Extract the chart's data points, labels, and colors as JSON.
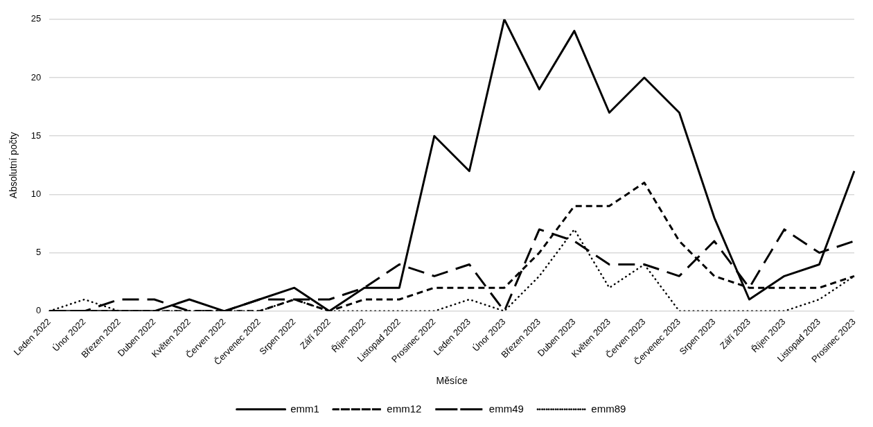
{
  "chart_data": {
    "type": "line",
    "xlabel": "Měsíce",
    "ylabel": "Absolutní počty",
    "categories": [
      "Leden 2022",
      "Únor 2022",
      "Březen 2022",
      "Duben 2022",
      "Květen 2022",
      "Červen 2022",
      "Červenec 2022",
      "Srpen 2022",
      "Září 2022",
      "Říjen 2022",
      "Listopad 2022",
      "Prosinec 2022",
      "Leden 2023",
      "Únor 2023",
      "Březen 2023",
      "Duben 2023",
      "Květen 2023",
      "Červen 2023",
      "Červenec 2023",
      "Srpen 2023",
      "Září 2023",
      "Říjen 2023",
      "Listopad 2023",
      "Prosinec 2023"
    ],
    "series": [
      {
        "name": "emm1",
        "color": "#000000",
        "line_style": "solid",
        "values": [
          0,
          0,
          0,
          0,
          1,
          0,
          1,
          2,
          0,
          2,
          2,
          15,
          12,
          25,
          19,
          24,
          17,
          20,
          17,
          8,
          1,
          3,
          4,
          12
        ]
      },
      {
        "name": "emm12",
        "color": "#000000",
        "line_style": "dashed",
        "values": [
          0,
          0,
          0,
          0,
          0,
          0,
          0,
          1,
          0,
          1,
          1,
          2,
          2,
          2,
          5,
          9,
          9,
          11,
          6,
          3,
          2,
          2,
          2,
          3
        ]
      },
      {
        "name": "emm49",
        "color": "#000000",
        "line_style": "dashed",
        "values": [
          0,
          0,
          1,
          1,
          0,
          0,
          1,
          1,
          1,
          2,
          4,
          3,
          4,
          0,
          7,
          6,
          4,
          4,
          3,
          6,
          2,
          7,
          5,
          6
        ]
      },
      {
        "name": "emm89",
        "color": "#000000",
        "line_style": "dotted",
        "values": [
          0,
          1,
          0,
          0,
          0,
          0,
          0,
          1,
          0,
          0,
          0,
          0,
          1,
          0,
          3,
          7,
          2,
          4,
          0,
          0,
          0,
          0,
          1,
          3
        ]
      }
    ],
    "ylim": [
      0,
      25
    ],
    "yticks": [
      0,
      5,
      10,
      15,
      20,
      25
    ],
    "grid": "y",
    "legend": "bottom",
    "marker": "none"
  }
}
